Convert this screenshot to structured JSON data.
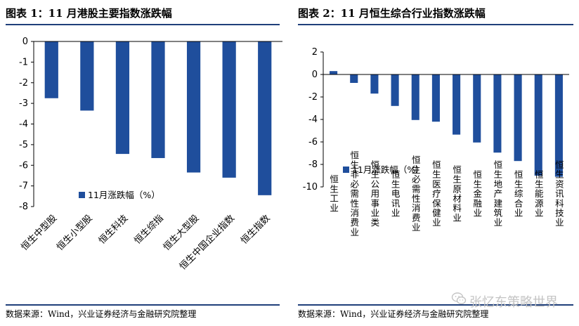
{
  "left": {
    "title": "图表 1：11 月港股主要指数涨跌幅",
    "source": "数据来源：Wind，兴业证券经济与金融研究院整理"
  },
  "right": {
    "title": "图表 2：11 月恒生综合行业指数涨跌幅",
    "source": "数据来源：Wind，兴业证券经济与金融研究院整理"
  },
  "watermark": {
    "text": "张忆东策略世界",
    "icon": "wechat-icon"
  },
  "colors": {
    "bar": "#1f4e9c",
    "rule": "#1f3f7a",
    "axis": "#000000"
  },
  "chart_data": [
    {
      "type": "bar",
      "title": "",
      "categories": [
        "恒生中型股",
        "恒生小型股",
        "恒生科技",
        "恒生综指",
        "恒生大型股",
        "恒生中国企业指数",
        "恒生指数"
      ],
      "series": [
        {
          "name": "11月涨跌幅（%）",
          "values": [
            -2.75,
            -3.35,
            -5.45,
            -5.65,
            -6.35,
            -6.6,
            -7.45
          ]
        }
      ],
      "yticks": [
        "0",
        "-1",
        "-2",
        "-3",
        "-4",
        "-5",
        "-6",
        "-7",
        "-8"
      ],
      "ylim": [
        -8,
        0
      ],
      "grid": false,
      "legend": "bottom-right"
    },
    {
      "type": "bar",
      "title": "",
      "categories": [
        "恒生工业",
        "恒生非必需性消费业",
        "恒生公用事业类",
        "恒生电讯业",
        "恒生必需性消费业",
        "恒生医疗保健业",
        "恒生原材料业",
        "恒生金融业",
        "恒生地产建筑业",
        "恒生综合业",
        "恒生能源业",
        "恒生资讯科技业"
      ],
      "series": [
        {
          "name": "11月涨跌幅（%）",
          "values": [
            0.3,
            -0.75,
            -1.7,
            -2.8,
            -4.05,
            -4.2,
            -5.35,
            -6.05,
            -6.95,
            -7.7,
            -9.0,
            -9.1
          ]
        }
      ],
      "yticks": [
        "2",
        "0",
        "-2",
        "-4",
        "-6",
        "-8",
        "-10"
      ],
      "ylim": [
        -10,
        2
      ],
      "grid": false,
      "legend": "bottom-left"
    }
  ]
}
